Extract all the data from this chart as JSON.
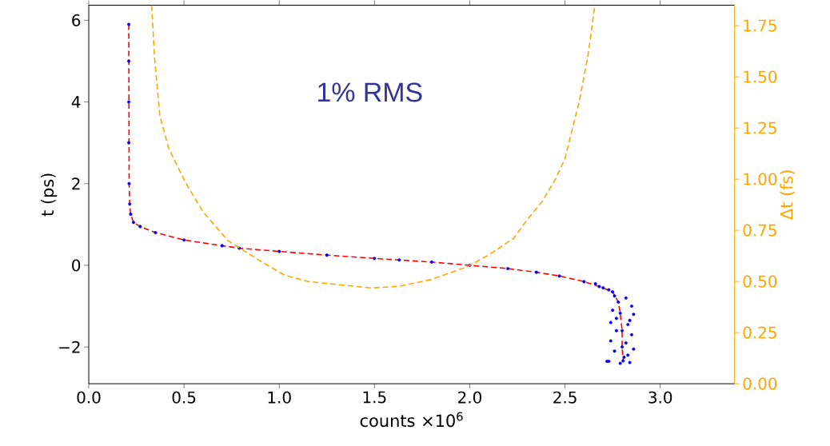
{
  "chart_data": {
    "type": "scatter",
    "xlabel": "counts ×10$^{6}$",
    "ylabel": "t (ps)",
    "y2label": "Δt (fs)",
    "annotations": [
      "1% RMS"
    ],
    "xlim": [
      0,
      3.39
    ],
    "xticks": [
      {
        "value": 0,
        "label": "0.0"
      },
      {
        "value": 0.5,
        "label": "0.5"
      },
      {
        "value": 1,
        "label": "1.0"
      },
      {
        "value": 1.5,
        "label": "1.5"
      },
      {
        "value": 2,
        "label": "2.0"
      },
      {
        "value": 2.5,
        "label": "2.5"
      },
      {
        "value": 3,
        "label": "3.0"
      }
    ],
    "ylim": [
      -2.9,
      6.37
    ],
    "yticks": [
      {
        "value": -2,
        "label": "−2"
      },
      0,
      2,
      4,
      6
    ],
    "y2lim": [
      0,
      1.85
    ],
    "y2ticks": [
      {
        "value": 0,
        "label": "0.00"
      },
      {
        "value": 0.25,
        "label": "0.25"
      },
      {
        "value": 0.5,
        "label": "0.50"
      },
      {
        "value": 0.75,
        "label": "0.75"
      },
      {
        "value": 1,
        "label": "1.00"
      },
      {
        "value": 1.25,
        "label": "1.25"
      },
      {
        "value": 1.5,
        "label": "1.50"
      },
      {
        "value": 1.75,
        "label": "1.75"
      }
    ],
    "series": [
      {
        "color": "#0000ff",
        "marker": "circle",
        "x": [
          0.21,
          0.21,
          0.21,
          0.21,
          0.212,
          0.215,
          0.22,
          0.235,
          0.27,
          0.35,
          0.5,
          0.7,
          0.79,
          1.0,
          1.25,
          1.5,
          1.63,
          1.8,
          2.0,
          2.2,
          2.35,
          2.47,
          2.6,
          2.68,
          2.75,
          2.78,
          2.79,
          2.8,
          2.8,
          2.805,
          2.73,
          2.76,
          2.82,
          2.85,
          2.75,
          2.86,
          2.74,
          2.83,
          2.77,
          2.85,
          2.74,
          2.82,
          2.86,
          2.76,
          2.83,
          2.73,
          2.79,
          2.84,
          2.72,
          2.81,
          2.77,
          2.84,
          2.7,
          2.66
        ],
        "values": [
          5.9,
          5.0,
          4.0,
          3.0,
          2.0,
          1.5,
          1.25,
          1.05,
          0.95,
          0.8,
          0.62,
          0.48,
          0.42,
          0.34,
          0.25,
          0.17,
          0.13,
          0.08,
          0.0,
          -0.08,
          -0.17,
          -0.26,
          -0.4,
          -0.52,
          -0.65,
          -0.9,
          -1.17,
          -1.6,
          -2.0,
          -2.34,
          -0.6,
          -0.75,
          -0.8,
          -1.0,
          -1.1,
          -1.2,
          -1.4,
          -1.45,
          -1.6,
          -1.7,
          -1.85,
          -1.9,
          -2.05,
          -2.1,
          -2.2,
          -2.35,
          -2.4,
          -2.38,
          -2.35,
          -2.25,
          -1.3,
          -1.35,
          -0.55,
          -0.45
        ]
      },
      {
        "type": "line",
        "color": "#ff0000",
        "line_style": "dashed",
        "marker": "none",
        "x": [
          0.21,
          0.212,
          0.215,
          0.22,
          0.235,
          0.27,
          0.35,
          0.5,
          0.7,
          0.79,
          1.0,
          1.25,
          1.5,
          1.63,
          1.8,
          2.0,
          2.2,
          2.35,
          2.47,
          2.6,
          2.68,
          2.75,
          2.78,
          2.79,
          2.8,
          2.8,
          2.805
        ],
        "values": [
          5.9,
          2.0,
          1.5,
          1.25,
          1.05,
          0.95,
          0.8,
          0.62,
          0.48,
          0.42,
          0.34,
          0.25,
          0.17,
          0.13,
          0.08,
          0.0,
          -0.08,
          -0.17,
          -0.26,
          -0.4,
          -0.52,
          -0.65,
          -0.9,
          -1.17,
          -1.6,
          -2.0,
          -2.34
        ]
      },
      {
        "type": "line",
        "axis": "y2",
        "color": "#ffa500",
        "line_style": "dashed",
        "marker": "none",
        "x": [
          0.33,
          0.345,
          0.373,
          0.42,
          0.51,
          0.6,
          0.73,
          0.9,
          1.03,
          1.15,
          1.25,
          1.48,
          1.63,
          1.8,
          1.99,
          2.1,
          2.23,
          2.3,
          2.38,
          2.45,
          2.5,
          2.54,
          2.575,
          2.62,
          2.657
        ],
        "values": [
          1.85,
          1.6,
          1.31,
          1.15,
          0.98,
          0.84,
          0.7,
          0.6,
          0.53,
          0.5,
          0.49,
          0.468,
          0.476,
          0.51,
          0.573,
          0.63,
          0.71,
          0.8,
          0.89,
          1.0,
          1.1,
          1.25,
          1.38,
          1.6,
          1.85
        ]
      }
    ]
  }
}
